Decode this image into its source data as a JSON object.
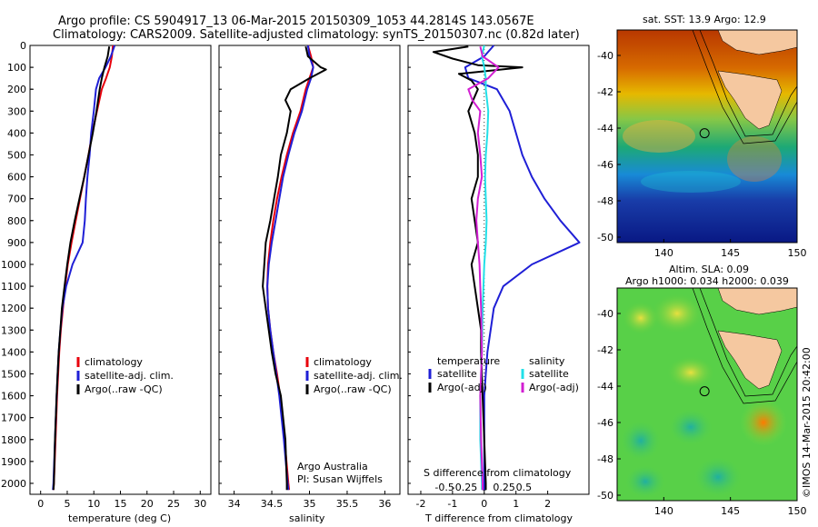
{
  "header": {
    "line1": "Argo profile: CS 5904917_13 06-Mar-2015 20150309_1053 44.2814S 143.0567E",
    "line2": "Climatology: CARS2009. Satellite-adjusted climatology: synTS_20150307.nc (0.82d later)"
  },
  "colors": {
    "climatology": "#e8000b",
    "satellite": "#1f1fd6",
    "argo": "#000000",
    "sat_salinity": "#22e0e8",
    "argo_salinity": "#d21fd2"
  },
  "depth_axis": {
    "ylim": [
      0,
      2050
    ],
    "ticks": [
      "0",
      "100",
      "200",
      "300",
      "400",
      "500",
      "600",
      "700",
      "800",
      "900",
      "1000",
      "1100",
      "1200",
      "1300",
      "1400",
      "1500",
      "1600",
      "1700",
      "1800",
      "1900",
      "2000"
    ]
  },
  "chart_data": [
    {
      "type": "line",
      "id": "temperature",
      "xlabel": "temperature (deg C)",
      "xlim": [
        -2,
        32
      ],
      "xticks": [
        "0",
        "5",
        "10",
        "15",
        "20",
        "25",
        "30"
      ],
      "legend": [
        "climatology",
        "satellite-adj. clim.",
        "Argo(..raw -QC)"
      ],
      "series": [
        {
          "name": "climatology",
          "color": "#e8000b",
          "depth": [
            0,
            50,
            100,
            150,
            200,
            300,
            400,
            500,
            600,
            700,
            800,
            900,
            1000,
            1100,
            1200,
            1300,
            1400,
            1500,
            1600,
            1800,
            2000,
            2030
          ],
          "values": [
            13.6,
            13.4,
            13.0,
            12.3,
            11.5,
            10.6,
            9.7,
            9.0,
            8.2,
            7.4,
            6.6,
            5.8,
            5.1,
            4.6,
            4.2,
            3.8,
            3.5,
            3.3,
            3.1,
            2.8,
            2.5,
            2.4
          ]
        },
        {
          "name": "satellite-adj. clim.",
          "color": "#1f1fd6",
          "depth": [
            0,
            50,
            100,
            150,
            200,
            300,
            400,
            500,
            600,
            700,
            800,
            900,
            1000,
            1100,
            1200,
            1300,
            1400,
            1500,
            1600,
            1800,
            2000,
            2030
          ],
          "values": [
            13.9,
            13.2,
            12.2,
            11.0,
            10.4,
            10.0,
            9.5,
            9.2,
            8.8,
            8.5,
            8.3,
            7.9,
            6.0,
            4.8,
            4.1,
            3.7,
            3.4,
            3.2,
            3.0,
            2.7,
            2.4,
            2.3
          ]
        },
        {
          "name": "Argo(..raw -QC)",
          "color": "#000000",
          "depth": [
            5,
            50,
            100,
            150,
            200,
            300,
            400,
            500,
            600,
            700,
            800,
            900,
            1000,
            1100,
            1200,
            1300,
            1400,
            1500,
            1600,
            1800,
            2000,
            2030
          ],
          "values": [
            12.9,
            12.6,
            12.0,
            11.5,
            11.1,
            10.5,
            9.8,
            9.0,
            8.2,
            7.3,
            6.4,
            5.6,
            5.0,
            4.5,
            4.0,
            3.7,
            3.4,
            3.2,
            3.0,
            2.7,
            2.5,
            2.4
          ]
        }
      ]
    },
    {
      "type": "line",
      "id": "salinity",
      "xlabel": "salinity",
      "xlim": [
        33.8,
        36.2
      ],
      "xticks": [
        "34",
        "34.5",
        "35",
        "35.5",
        "36"
      ],
      "legend": [
        "climatology",
        "satellite-adj. clim.",
        "Argo(..raw -QC)"
      ],
      "series": [
        {
          "name": "climatology",
          "color": "#e8000b",
          "depth": [
            0,
            50,
            100,
            150,
            200,
            300,
            400,
            500,
            600,
            700,
            800,
            900,
            1000,
            1100,
            1200,
            1300,
            1400,
            1500,
            1600,
            1800,
            2000,
            2030
          ],
          "values": [
            34.98,
            35.02,
            35.05,
            35.0,
            34.95,
            34.88,
            34.78,
            34.7,
            34.63,
            34.57,
            34.52,
            34.48,
            34.45,
            34.44,
            34.45,
            34.48,
            34.52,
            34.57,
            34.61,
            34.67,
            34.72,
            34.73
          ]
        },
        {
          "name": "satellite-adj. clim.",
          "color": "#1f1fd6",
          "depth": [
            0,
            50,
            100,
            150,
            200,
            300,
            400,
            500,
            600,
            700,
            800,
            900,
            1000,
            1100,
            1200,
            1300,
            1400,
            1500,
            1600,
            1800,
            2000,
            2030
          ],
          "values": [
            34.98,
            35.0,
            35.05,
            35.02,
            34.97,
            34.9,
            34.8,
            34.72,
            34.65,
            34.6,
            34.55,
            34.5,
            34.46,
            34.44,
            34.45,
            34.48,
            34.52,
            34.56,
            34.6,
            34.66,
            34.71,
            34.72
          ]
        },
        {
          "name": "Argo(..raw -QC)",
          "color": "#000000",
          "depth": [
            5,
            50,
            100,
            110,
            150,
            200,
            250,
            300,
            400,
            500,
            600,
            700,
            800,
            900,
            1000,
            1100,
            1200,
            1300,
            1400,
            1500,
            1600,
            1800,
            2000,
            2030
          ],
          "values": [
            34.95,
            34.98,
            35.15,
            35.22,
            35.0,
            34.75,
            34.68,
            34.75,
            34.7,
            34.62,
            34.58,
            34.53,
            34.48,
            34.42,
            34.4,
            34.38,
            34.42,
            34.46,
            34.5,
            34.55,
            34.62,
            34.68,
            34.7,
            34.7
          ]
        }
      ]
    },
    {
      "type": "line",
      "id": "differences",
      "xlabel": "T difference from climatology",
      "xlabel_top": "S difference from climatology",
      "xlim": [
        -2.4,
        3.3
      ],
      "xticks": [
        "-2",
        "-1",
        "0",
        "1",
        "2"
      ],
      "xticks_top": [
        "-0.5",
        "-0.25",
        "0",
        "0.25",
        "0.5"
      ],
      "legend_titles": [
        "temperature",
        "salinity"
      ],
      "legend": [
        "satellite",
        "Argo(-adj)",
        "satellite",
        "Argo(-adj)"
      ],
      "series": [
        {
          "name": "satellite",
          "group": "temperature",
          "color": "#1f1fd6",
          "depth": [
            0,
            50,
            100,
            150,
            200,
            300,
            400,
            500,
            600,
            700,
            800,
            900,
            1000,
            1100,
            1200,
            1300,
            1400,
            1500,
            1600,
            1800,
            2000,
            2030
          ],
          "values": [
            0.3,
            0.0,
            -0.6,
            -0.5,
            0.4,
            0.8,
            1.0,
            1.2,
            1.5,
            1.9,
            2.4,
            3.0,
            1.5,
            0.6,
            0.3,
            0.2,
            0.1,
            0.05,
            0.0,
            0.0,
            0.0,
            0.0
          ]
        },
        {
          "name": "Argo(-adj)",
          "group": "temperature",
          "color": "#000000",
          "depth": [
            5,
            30,
            60,
            90,
            100,
            130,
            160,
            200,
            300,
            400,
            500,
            600,
            700,
            800,
            900,
            1000,
            1100,
            1200,
            1300,
            1400,
            1600,
            1800,
            2000,
            2030
          ],
          "values": [
            -0.5,
            -1.6,
            -1.0,
            -0.2,
            1.2,
            -0.8,
            -0.4,
            -0.2,
            -0.5,
            -0.3,
            -0.2,
            -0.2,
            -0.4,
            -0.3,
            -0.2,
            -0.4,
            -0.3,
            -0.2,
            -0.1,
            -0.1,
            -0.05,
            0.0,
            0.05,
            0.05
          ]
        },
        {
          "name": "satellite",
          "group": "salinity",
          "color": "#22e0e8",
          "depth": [
            0,
            50,
            100,
            150,
            200,
            300,
            400,
            500,
            600,
            700,
            800,
            900,
            1000,
            1200,
            1400,
            1600,
            1800,
            2000,
            2030
          ],
          "values": [
            0.0,
            -0.03,
            0.0,
            0.02,
            0.02,
            0.05,
            0.04,
            0.02,
            0.01,
            0.02,
            0.03,
            0.02,
            0.0,
            -0.02,
            -0.03,
            -0.05,
            -0.05,
            -0.03,
            -0.03
          ]
        },
        {
          "name": "Argo(-adj)",
          "group": "salinity",
          "color": "#d21fd2",
          "depth": [
            5,
            50,
            100,
            150,
            200,
            250,
            300,
            400,
            500,
            600,
            700,
            800,
            900,
            1000,
            1100,
            1200,
            1400,
            1600,
            1800,
            2000,
            2030
          ],
          "values": [
            -0.05,
            -0.02,
            0.18,
            0.05,
            -0.2,
            -0.15,
            -0.05,
            -0.08,
            -0.05,
            -0.03,
            -0.08,
            -0.1,
            -0.08,
            -0.06,
            -0.05,
            -0.04,
            -0.03,
            -0.05,
            -0.04,
            -0.02,
            -0.02
          ]
        }
      ]
    },
    {
      "type": "heatmap",
      "id": "sst-map",
      "title": "sat. SST: 13.9 Argo: 12.9",
      "xticks": [
        "140",
        "145",
        "150"
      ],
      "yticks": [
        "-40",
        "-42",
        "-44",
        "-46",
        "-48",
        "-50"
      ],
      "xlim": [
        136.5,
        150
      ],
      "ylim": [
        -50.3,
        -38.6
      ],
      "argo_location": [
        143.0567,
        -44.2814
      ]
    },
    {
      "type": "heatmap",
      "id": "sla-map",
      "title_line1": "Altim. SLA: 0.09",
      "title_line2": "Argo h1000: 0.034 h2000: 0.039",
      "xticks": [
        "140",
        "145",
        "150"
      ],
      "yticks": [
        "-40",
        "-42",
        "-44",
        "-46",
        "-48",
        "-50"
      ],
      "xlim": [
        136.5,
        150
      ],
      "ylim": [
        -50.3,
        -38.6
      ],
      "argo_location": [
        143.0567,
        -44.2814
      ]
    }
  ],
  "annotations": {
    "float_owner_line1": "Argo Australia",
    "float_owner_line2": "PI: Susan Wijffels",
    "watermark": "©IMOS 14-Mar-2015 20:42:00"
  }
}
